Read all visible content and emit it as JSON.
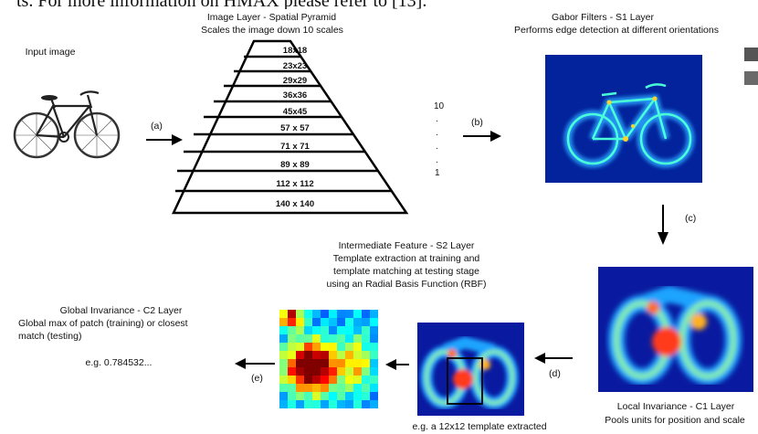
{
  "top_text": "ts. For more information on HMAX please refer to [13].",
  "input_image": {
    "label": "Input image"
  },
  "arrows": {
    "a": "(a)",
    "b": "(b)",
    "c": "(c)",
    "d": "(d)",
    "e": "(e)"
  },
  "image_layer": {
    "title": "Image Layer - Spatial Pyramid",
    "subtitle": "Scales the image down 10 scales",
    "scales": [
      "18x18",
      "23x23",
      "29x29",
      "36x36",
      "45x45",
      "57 x 57",
      "71 x 71",
      "89 x 89",
      "112 x 112",
      "140 x 140"
    ],
    "scale_count_top": "10",
    "scale_dots": [
      ".",
      ".",
      ".",
      "."
    ],
    "scale_count_bottom": "1"
  },
  "gabor": {
    "title": "Gabor Filters - S1 Layer",
    "subtitle": "Performs edge detection at different orientations"
  },
  "c1": {
    "title": "Local Invariance - C1 Layer",
    "subtitle": "Pools units for position and scale"
  },
  "s2": {
    "title": "Intermediate Feature - S2 Layer",
    "lines": [
      "Template extraction at training and",
      "template matching at testing stage",
      "using an Radial Basis Function (RBF)"
    ],
    "caption": "e.g. a 12x12 template extracted"
  },
  "c2": {
    "title": "Global Invariance - C2 Layer",
    "lines": [
      "Global max of patch (training) or closest",
      "match (testing)"
    ],
    "example": "e.g. 0.784532..."
  }
}
